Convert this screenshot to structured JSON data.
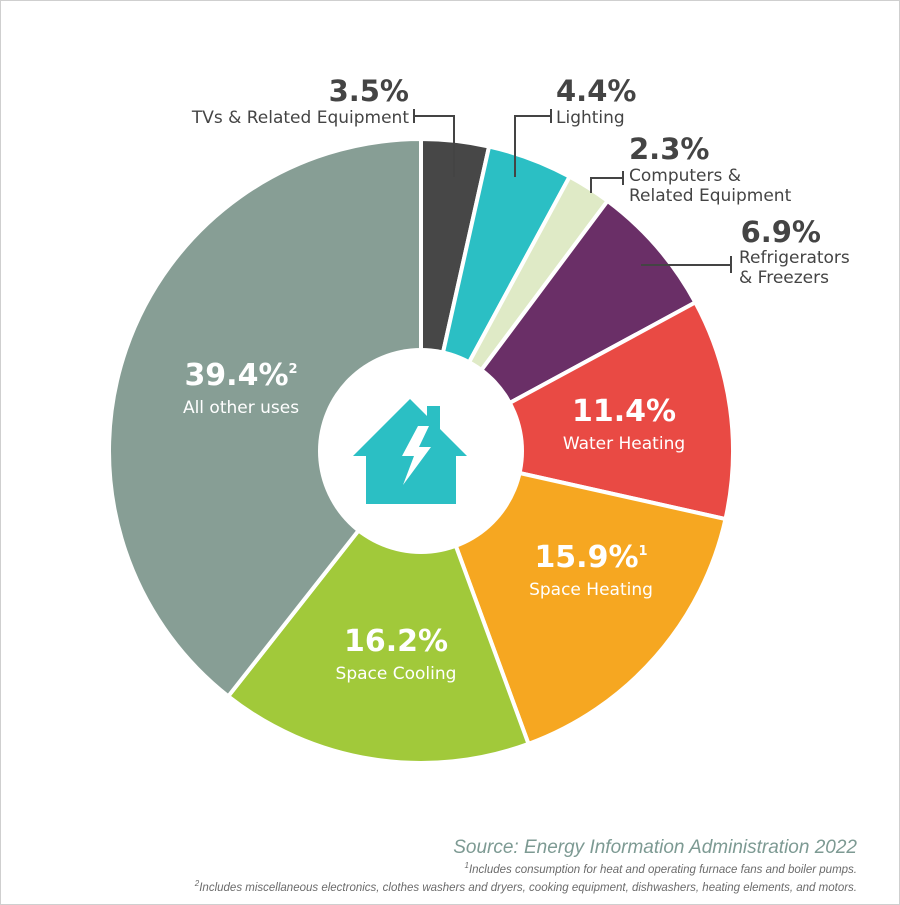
{
  "chart_data": {
    "type": "pie",
    "variant": "donut",
    "start_angle_deg": 0,
    "direction": "clockwise",
    "slices": [
      {
        "label": "TVs & Related Equipment",
        "value": 3.5,
        "value_text": "3.5%",
        "color": "#474747",
        "label_position": "outside-left",
        "footnote": ""
      },
      {
        "label": "Lighting",
        "value": 4.4,
        "value_text": "4.4%",
        "color": "#2bbfc4",
        "label_position": "outside-right",
        "footnote": ""
      },
      {
        "label": "Computers & Related Equipment",
        "label_lines": [
          "Computers &",
          "Related Equipment"
        ],
        "value": 2.3,
        "value_text": "2.3%",
        "color": "#dfeac6",
        "label_position": "outside-right",
        "footnote": ""
      },
      {
        "label": "Refrigerators & Freezers",
        "label_lines": [
          "Refrigerators",
          "& Freezers"
        ],
        "value": 6.9,
        "value_text": "6.9%",
        "color": "#6a2f67",
        "label_position": "outside-right",
        "footnote": ""
      },
      {
        "label": "Water Heating",
        "value": 11.4,
        "value_text": "11.4%",
        "color": "#e94a44",
        "label_position": "inside",
        "footnote": ""
      },
      {
        "label": "Space Heating",
        "value": 15.9,
        "value_text": "15.9%",
        "color": "#f6a721",
        "label_position": "inside",
        "footnote": "1"
      },
      {
        "label": "Space Cooling",
        "value": 16.2,
        "value_text": "16.2%",
        "color": "#a1c93a",
        "label_position": "inside",
        "footnote": ""
      },
      {
        "label": "All other uses",
        "value": 39.4,
        "value_text": "39.4%",
        "color": "#879e95",
        "label_position": "inside",
        "footnote": "2"
      }
    ],
    "center_icon": "house-lightning-icon",
    "center_icon_color": "#2bbfc4"
  },
  "source": "Source: Energy Information Administration 2022",
  "notes": [
    {
      "marker": "1",
      "text": "Includes consumption for heat and operating furnace fans and boiler pumps."
    },
    {
      "marker": "2",
      "text": "Includes miscellaneous electronics, clothes washers and dryers, cooking equipment, dishwashers, heating elements, and motors."
    }
  ]
}
